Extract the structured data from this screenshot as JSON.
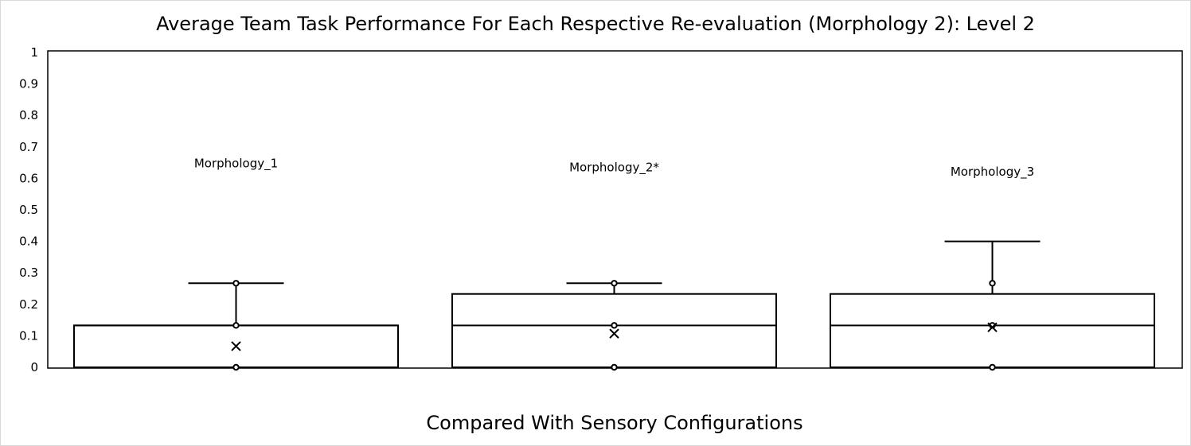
{
  "chart_data": {
    "type": "box",
    "title": "Average Team Task Performance For Each Respective Re-evaluation (Morphology 2): Level 2",
    "xlabel": "Compared With Sensory Configurations",
    "ylabel": "",
    "ylim": [
      0,
      1
    ],
    "yticks": [
      "0",
      "0.1",
      "0.2",
      "0.3",
      "0.4",
      "0.5",
      "0.6",
      "0.7",
      "0.8",
      "0.9",
      "1"
    ],
    "grid": false,
    "legend": "none",
    "series": [
      {
        "label": "Morphology_1",
        "label_y": 0.635,
        "min": 0,
        "q1": 0,
        "median": 0.133,
        "q3": 0.133,
        "max": 0.267,
        "mean": 0.067,
        "points": [
          0,
          0.133,
          0.267
        ]
      },
      {
        "label": "Morphology_2*",
        "label_y": 0.623,
        "min": 0,
        "q1": 0,
        "median": 0.133,
        "q3": 0.233,
        "max": 0.267,
        "mean": 0.107,
        "points": [
          0,
          0.133,
          0.267
        ]
      },
      {
        "label": "Morphology_3",
        "label_y": 0.608,
        "min": 0,
        "q1": 0,
        "median": 0.133,
        "q3": 0.233,
        "max": 0.4,
        "mean": 0.127,
        "points": [
          0,
          0.133,
          0.267
        ]
      }
    ]
  }
}
